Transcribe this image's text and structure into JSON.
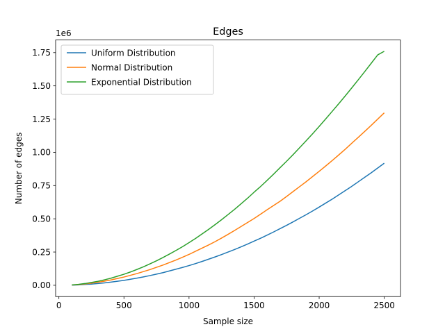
{
  "chart_data": {
    "type": "line",
    "title": "Edges",
    "xlabel": "Sample size",
    "ylabel": "Number of edges",
    "y_offset_label": "1e6",
    "xlim": [
      -25,
      2625
    ],
    "ylim": [
      -0.085,
      1.845
    ],
    "xticks": [
      0,
      500,
      1000,
      1500,
      2000,
      2500
    ],
    "xtick_labels": [
      "0",
      "500",
      "1000",
      "1500",
      "2000",
      "2500"
    ],
    "yticks": [
      0.0,
      0.25,
      0.5,
      0.75,
      1.0,
      1.25,
      1.5,
      1.75
    ],
    "ytick_labels": [
      "0.00",
      "0.25",
      "0.50",
      "0.75",
      "1.00",
      "1.25",
      "1.50",
      "1.75"
    ],
    "grid": false,
    "legend_position": "upper-left",
    "x": [
      100,
      150,
      200,
      250,
      300,
      350,
      400,
      450,
      500,
      550,
      600,
      650,
      700,
      750,
      800,
      850,
      900,
      950,
      1000,
      1050,
      1100,
      1150,
      1200,
      1250,
      1300,
      1350,
      1400,
      1450,
      1500,
      1550,
      1600,
      1650,
      1700,
      1750,
      1800,
      1850,
      1900,
      1950,
      2000,
      2050,
      2100,
      2150,
      2200,
      2250,
      2300,
      2350,
      2400,
      2450,
      2500
    ],
    "series": [
      {
        "name": "Uniform Distribution",
        "color": "#1f77b4",
        "values": [
          0.001,
          0.003,
          0.006,
          0.009,
          0.013,
          0.018,
          0.024,
          0.03,
          0.037,
          0.045,
          0.054,
          0.063,
          0.073,
          0.084,
          0.095,
          0.108,
          0.121,
          0.134,
          0.148,
          0.163,
          0.179,
          0.196,
          0.213,
          0.231,
          0.25,
          0.269,
          0.289,
          0.31,
          0.332,
          0.354,
          0.377,
          0.401,
          0.426,
          0.451,
          0.477,
          0.504,
          0.531,
          0.559,
          0.588,
          0.618,
          0.648,
          0.68,
          0.712,
          0.744,
          0.778,
          0.812,
          0.846,
          0.882,
          0.918
        ]
      },
      {
        "name": "Normal Distribution",
        "color": "#ff7f0e",
        "values": [
          0.002,
          0.005,
          0.01,
          0.016,
          0.023,
          0.031,
          0.04,
          0.051,
          0.062,
          0.075,
          0.088,
          0.103,
          0.118,
          0.135,
          0.152,
          0.171,
          0.19,
          0.211,
          0.232,
          0.256,
          0.279,
          0.303,
          0.328,
          0.355,
          0.383,
          0.412,
          0.442,
          0.472,
          0.502,
          0.535,
          0.568,
          0.6,
          0.632,
          0.668,
          0.705,
          0.742,
          0.779,
          0.818,
          0.857,
          0.897,
          0.938,
          0.98,
          1.023,
          1.068,
          1.112,
          1.157,
          1.203,
          1.25,
          1.297
        ]
      },
      {
        "name": "Exponential Distribution",
        "color": "#2ca02c",
        "values": [
          0.003,
          0.007,
          0.013,
          0.021,
          0.03,
          0.041,
          0.053,
          0.068,
          0.083,
          0.1,
          0.119,
          0.139,
          0.161,
          0.184,
          0.209,
          0.235,
          0.262,
          0.29,
          0.321,
          0.352,
          0.386,
          0.42,
          0.456,
          0.493,
          0.532,
          0.571,
          0.613,
          0.655,
          0.7,
          0.743,
          0.789,
          0.836,
          0.885,
          0.933,
          0.983,
          1.035,
          1.087,
          1.14,
          1.195,
          1.251,
          1.308,
          1.365,
          1.424,
          1.484,
          1.545,
          1.607,
          1.67,
          1.733,
          1.76
        ]
      }
    ]
  }
}
